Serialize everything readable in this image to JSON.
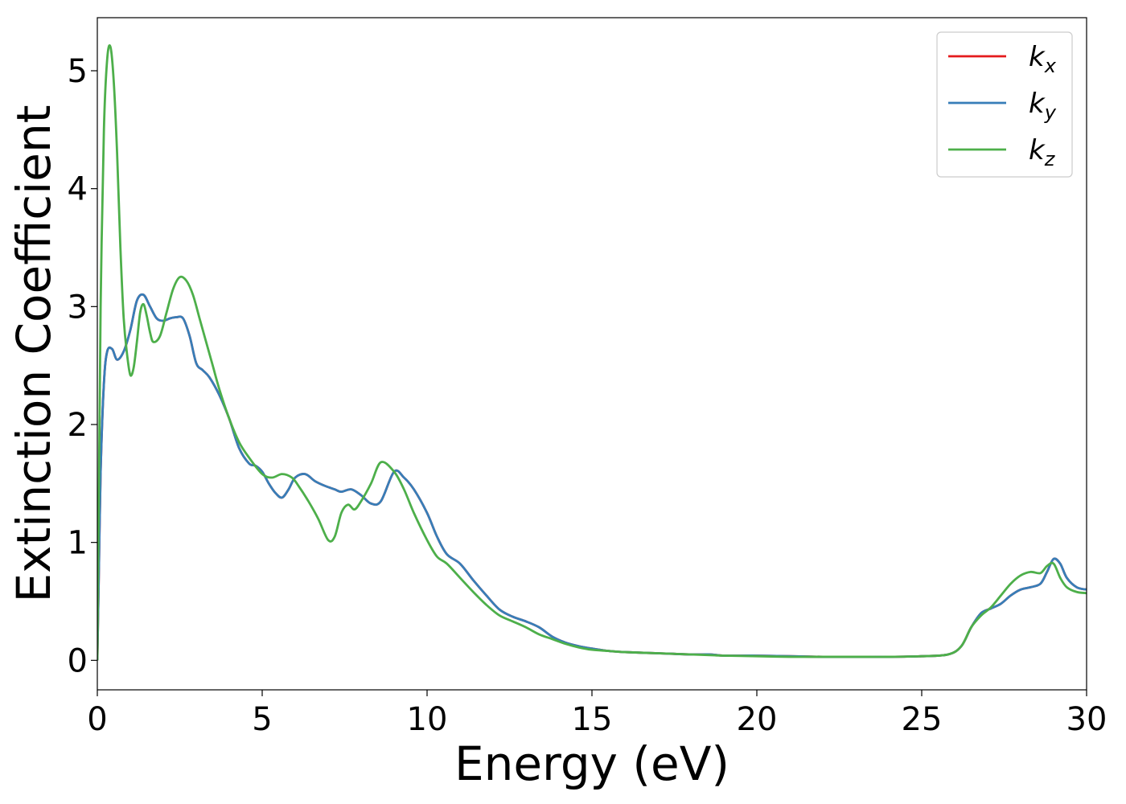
{
  "chart_data": {
    "type": "line",
    "xlabel": "Energy (eV)",
    "ylabel": "Extinction Coefficient",
    "xlim": [
      0,
      30
    ],
    "ylim": [
      -0.25,
      5.45
    ],
    "xticks": [
      0,
      5,
      10,
      15,
      20,
      25,
      30
    ],
    "yticks": [
      0,
      1,
      2,
      3,
      4,
      5
    ],
    "grid": false,
    "legend_position": "top-right",
    "series": [
      {
        "name": "k_x",
        "label_base": "k",
        "label_sub": "x",
        "color": "#e41a1c",
        "x": [
          0,
          0.05,
          0.1,
          0.2,
          0.3,
          0.45,
          0.6,
          0.8,
          1.0,
          1.2,
          1.4,
          1.6,
          1.8,
          2.0,
          2.2,
          2.4,
          2.6,
          2.8,
          3.0,
          3.2,
          3.4,
          3.7,
          4.0,
          4.3,
          4.6,
          4.8,
          5.0,
          5.2,
          5.4,
          5.6,
          5.8,
          6.0,
          6.3,
          6.6,
          6.9,
          7.2,
          7.4,
          7.7,
          8.0,
          8.3,
          8.6,
          9.0,
          9.3,
          9.6,
          10.0,
          10.3,
          10.6,
          11.0,
          11.4,
          11.8,
          12.2,
          12.6,
          13.0,
          13.4,
          13.8,
          14.2,
          14.6,
          15.0,
          15.5,
          16.0,
          17.0,
          18.0,
          18.6,
          19.0,
          20.0,
          21.0,
          22.0,
          23.0,
          24.0,
          25.0,
          25.8,
          26.2,
          26.5,
          26.8,
          27.1,
          27.4,
          27.7,
          28.0,
          28.3,
          28.6,
          28.8,
          29.0,
          29.2,
          29.4,
          29.7,
          30.0
        ],
        "y": [
          0,
          0.8,
          1.6,
          2.35,
          2.62,
          2.64,
          2.55,
          2.62,
          2.8,
          3.05,
          3.1,
          3.0,
          2.9,
          2.88,
          2.9,
          2.91,
          2.9,
          2.75,
          2.52,
          2.46,
          2.4,
          2.25,
          2.05,
          1.8,
          1.67,
          1.65,
          1.6,
          1.5,
          1.42,
          1.38,
          1.45,
          1.55,
          1.58,
          1.52,
          1.48,
          1.45,
          1.43,
          1.45,
          1.4,
          1.33,
          1.35,
          1.6,
          1.55,
          1.45,
          1.25,
          1.05,
          0.9,
          0.82,
          0.68,
          0.55,
          0.43,
          0.37,
          0.33,
          0.28,
          0.2,
          0.15,
          0.12,
          0.1,
          0.08,
          0.07,
          0.06,
          0.05,
          0.05,
          0.04,
          0.04,
          0.035,
          0.03,
          0.03,
          0.03,
          0.035,
          0.05,
          0.12,
          0.28,
          0.4,
          0.44,
          0.48,
          0.55,
          0.6,
          0.62,
          0.65,
          0.75,
          0.86,
          0.82,
          0.7,
          0.62,
          0.6
        ]
      },
      {
        "name": "k_y",
        "label_base": "k",
        "label_sub": "y",
        "color": "#377eb8",
        "x": [
          0,
          0.05,
          0.1,
          0.2,
          0.3,
          0.45,
          0.6,
          0.8,
          1.0,
          1.2,
          1.4,
          1.6,
          1.8,
          2.0,
          2.2,
          2.4,
          2.6,
          2.8,
          3.0,
          3.2,
          3.4,
          3.7,
          4.0,
          4.3,
          4.6,
          4.8,
          5.0,
          5.2,
          5.4,
          5.6,
          5.8,
          6.0,
          6.3,
          6.6,
          6.9,
          7.2,
          7.4,
          7.7,
          8.0,
          8.3,
          8.6,
          9.0,
          9.3,
          9.6,
          10.0,
          10.3,
          10.6,
          11.0,
          11.4,
          11.8,
          12.2,
          12.6,
          13.0,
          13.4,
          13.8,
          14.2,
          14.6,
          15.0,
          15.5,
          16.0,
          17.0,
          18.0,
          18.6,
          19.0,
          20.0,
          21.0,
          22.0,
          23.0,
          24.0,
          25.0,
          25.8,
          26.2,
          26.5,
          26.8,
          27.1,
          27.4,
          27.7,
          28.0,
          28.3,
          28.6,
          28.8,
          29.0,
          29.2,
          29.4,
          29.7,
          30.0
        ],
        "y": [
          0,
          0.8,
          1.6,
          2.35,
          2.62,
          2.64,
          2.55,
          2.62,
          2.8,
          3.05,
          3.1,
          3.0,
          2.9,
          2.88,
          2.9,
          2.91,
          2.9,
          2.75,
          2.52,
          2.46,
          2.4,
          2.25,
          2.05,
          1.8,
          1.67,
          1.65,
          1.6,
          1.5,
          1.42,
          1.38,
          1.45,
          1.55,
          1.58,
          1.52,
          1.48,
          1.45,
          1.43,
          1.45,
          1.4,
          1.33,
          1.35,
          1.6,
          1.55,
          1.45,
          1.25,
          1.05,
          0.9,
          0.82,
          0.68,
          0.55,
          0.43,
          0.37,
          0.33,
          0.28,
          0.2,
          0.15,
          0.12,
          0.1,
          0.08,
          0.07,
          0.06,
          0.05,
          0.05,
          0.04,
          0.04,
          0.035,
          0.03,
          0.03,
          0.03,
          0.035,
          0.05,
          0.12,
          0.28,
          0.4,
          0.44,
          0.48,
          0.55,
          0.6,
          0.62,
          0.65,
          0.75,
          0.86,
          0.82,
          0.7,
          0.62,
          0.6
        ]
      },
      {
        "name": "k_z",
        "label_base": "k",
        "label_sub": "z",
        "color": "#4daf4a",
        "x": [
          0,
          0.05,
          0.1,
          0.2,
          0.3,
          0.4,
          0.5,
          0.6,
          0.7,
          0.8,
          0.9,
          1.0,
          1.1,
          1.2,
          1.3,
          1.4,
          1.5,
          1.6,
          1.7,
          1.9,
          2.1,
          2.3,
          2.5,
          2.7,
          2.9,
          3.1,
          3.3,
          3.5,
          3.7,
          4.0,
          4.3,
          4.6,
          5.0,
          5.3,
          5.6,
          5.9,
          6.1,
          6.4,
          6.7,
          7.0,
          7.2,
          7.4,
          7.6,
          7.8,
          8.0,
          8.3,
          8.6,
          9.0,
          9.3,
          9.6,
          10.0,
          10.3,
          10.6,
          11.0,
          11.4,
          11.8,
          12.2,
          12.6,
          13.0,
          13.4,
          13.8,
          14.2,
          14.6,
          15.0,
          15.5,
          16.0,
          17.0,
          18.0,
          19.0,
          20.0,
          21.0,
          22.0,
          23.0,
          24.0,
          25.0,
          25.8,
          26.2,
          26.5,
          26.8,
          27.1,
          27.4,
          27.7,
          28.0,
          28.3,
          28.6,
          28.8,
          29.0,
          29.2,
          29.4,
          29.7,
          30.0
        ],
        "y": [
          0,
          1.5,
          3.0,
          4.5,
          5.1,
          5.2,
          4.9,
          4.3,
          3.5,
          2.9,
          2.6,
          2.42,
          2.48,
          2.7,
          2.95,
          3.02,
          2.92,
          2.78,
          2.7,
          2.75,
          2.95,
          3.15,
          3.25,
          3.22,
          3.1,
          2.9,
          2.7,
          2.5,
          2.3,
          2.05,
          1.85,
          1.72,
          1.58,
          1.55,
          1.58,
          1.55,
          1.48,
          1.35,
          1.2,
          1.02,
          1.05,
          1.25,
          1.32,
          1.28,
          1.35,
          1.5,
          1.68,
          1.6,
          1.45,
          1.25,
          1.02,
          0.88,
          0.82,
          0.7,
          0.58,
          0.47,
          0.38,
          0.33,
          0.28,
          0.22,
          0.18,
          0.14,
          0.11,
          0.09,
          0.08,
          0.07,
          0.06,
          0.05,
          0.04,
          0.035,
          0.03,
          0.03,
          0.03,
          0.03,
          0.035,
          0.05,
          0.12,
          0.28,
          0.38,
          0.45,
          0.55,
          0.65,
          0.72,
          0.75,
          0.74,
          0.8,
          0.82,
          0.7,
          0.62,
          0.58,
          0.57
        ]
      }
    ]
  }
}
